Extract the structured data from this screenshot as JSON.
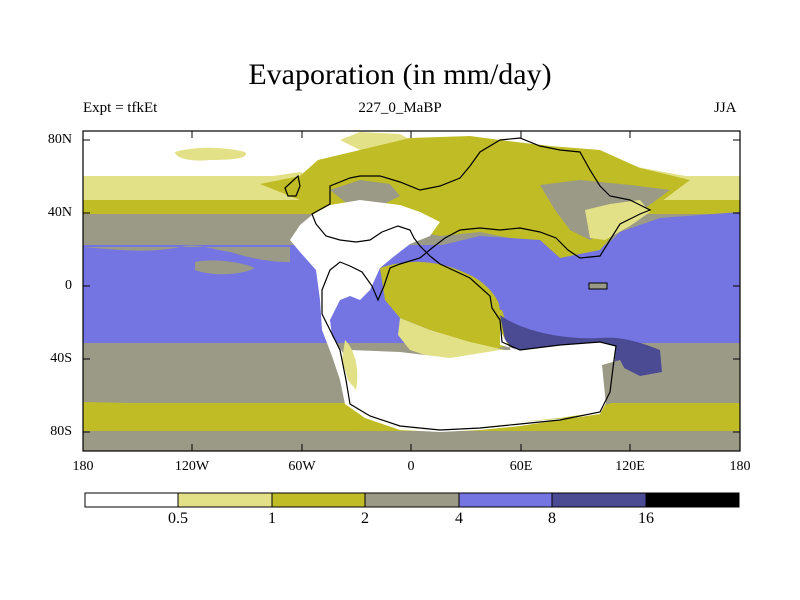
{
  "title": "Evaporation (in mm/day)",
  "subtitle_left": "Expt = tfkEt",
  "subtitle_center": "227_0_MaBP",
  "subtitle_right": "JJA",
  "lat_ticks": [
    "80N",
    "40N",
    "0",
    "40S",
    "80S"
  ],
  "lon_ticks": [
    "180",
    "120W",
    "60W",
    "0",
    "60E",
    "120E",
    "180"
  ],
  "colorbar": {
    "labels": [
      "0.5",
      "1",
      "2",
      "4",
      "8",
      "16"
    ],
    "colors": [
      "#ffffff",
      "#e3e187",
      "#bfbc25",
      "#9a9a87",
      "#7474e2",
      "#4b4b93",
      "#000000"
    ]
  }
}
